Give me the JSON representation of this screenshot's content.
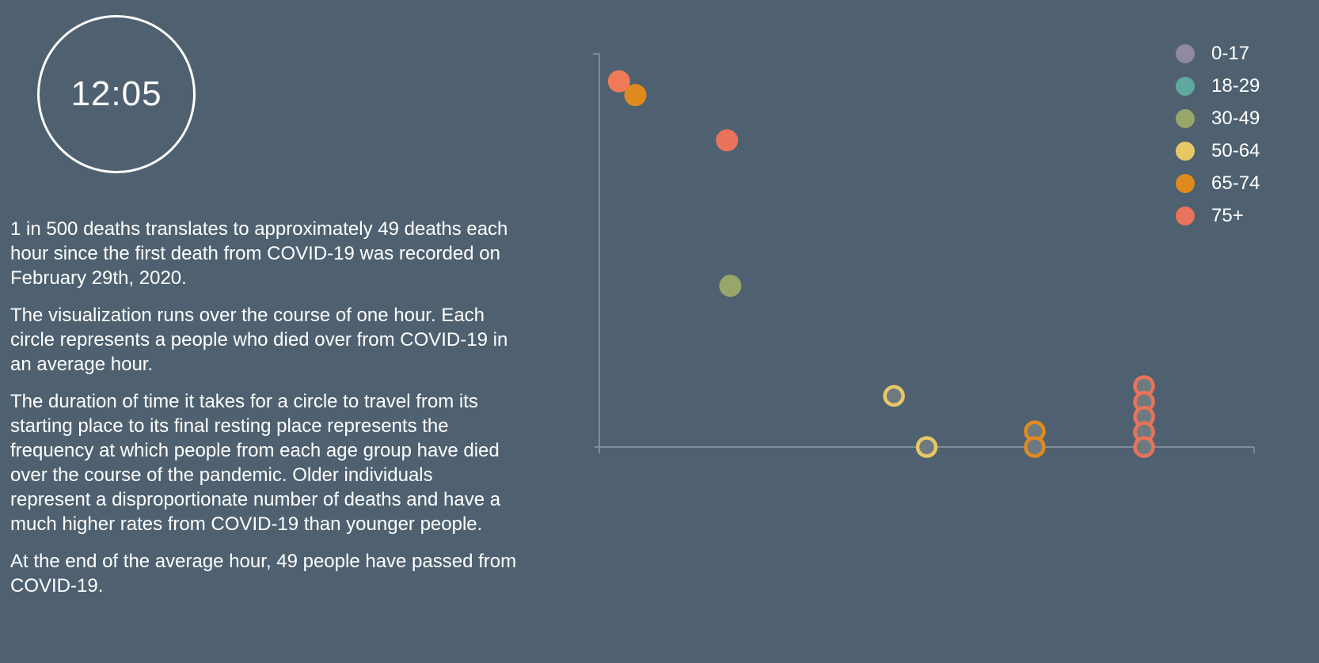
{
  "clock": {
    "time": "12:05"
  },
  "paragraphs": [
    "1 in 500 deaths translates to approximately 49 deaths each hour since the first death from COVID-19 was recorded on February 29th, 2020.",
    "The visualization runs over the course of one hour. Each circle represents a people who died over from COVID-19 in an average hour.",
    "The duration of time it takes for a circle to travel from its starting place to its final resting place represents the frequency at which people from each age group have died over the course of the pandemic. Older individuals represent a disproportionate number of deaths and have a much higher rates from COVID-19 than younger people.",
    "At the end of the average hour, 49 people have passed from COVID-19."
  ],
  "chart_data": {
    "type": "scatter",
    "title": "",
    "xlabel": "",
    "ylabel": "",
    "grid": false,
    "legend_position": "top-right",
    "legend": [
      {
        "label": "0-17",
        "color": "#8e8aa6"
      },
      {
        "label": "18-29",
        "color": "#5fa9a0"
      },
      {
        "label": "30-49",
        "color": "#98a66a"
      },
      {
        "label": "50-64",
        "color": "#e8c765"
      },
      {
        "label": "65-74",
        "color": "#e08a1e"
      },
      {
        "label": "75+",
        "color": "#e8735a"
      }
    ],
    "series": [
      {
        "group": "75+",
        "state": "moving",
        "color": "#f07a57",
        "x": 0.03,
        "y": 0.93
      },
      {
        "group": "65-74",
        "state": "moving",
        "color": "#e08a1e",
        "x": 0.055,
        "y": 0.895
      },
      {
        "group": "75+",
        "state": "moving",
        "color": "#e8735a",
        "x": 0.195,
        "y": 0.78
      },
      {
        "group": "30-49",
        "state": "moving",
        "color": "#98a66a",
        "x": 0.2,
        "y": 0.41
      },
      {
        "group": "50-64",
        "state": "resting",
        "color": "#e8c765",
        "x": 0.45,
        "y": 0.13
      },
      {
        "group": "50-64",
        "state": "resting",
        "color": "#e8c765",
        "x": 0.5,
        "y": 0.0
      },
      {
        "group": "65-74",
        "state": "resting",
        "color": "#e08a1e",
        "x": 0.665,
        "y": 0.04
      },
      {
        "group": "65-74",
        "state": "resting",
        "color": "#e08a1e",
        "x": 0.665,
        "y": 0.0
      },
      {
        "group": "75+",
        "state": "resting",
        "color": "#e8735a",
        "x": 0.832,
        "y": 0.155
      },
      {
        "group": "75+",
        "state": "resting",
        "color": "#e8735a",
        "x": 0.832,
        "y": 0.115
      },
      {
        "group": "75+",
        "state": "resting",
        "color": "#e8735a",
        "x": 0.832,
        "y": 0.077
      },
      {
        "group": "75+",
        "state": "resting",
        "color": "#e8735a",
        "x": 0.832,
        "y": 0.038
      },
      {
        "group": "75+",
        "state": "resting",
        "color": "#e8735a",
        "x": 0.832,
        "y": 0.0
      }
    ]
  }
}
